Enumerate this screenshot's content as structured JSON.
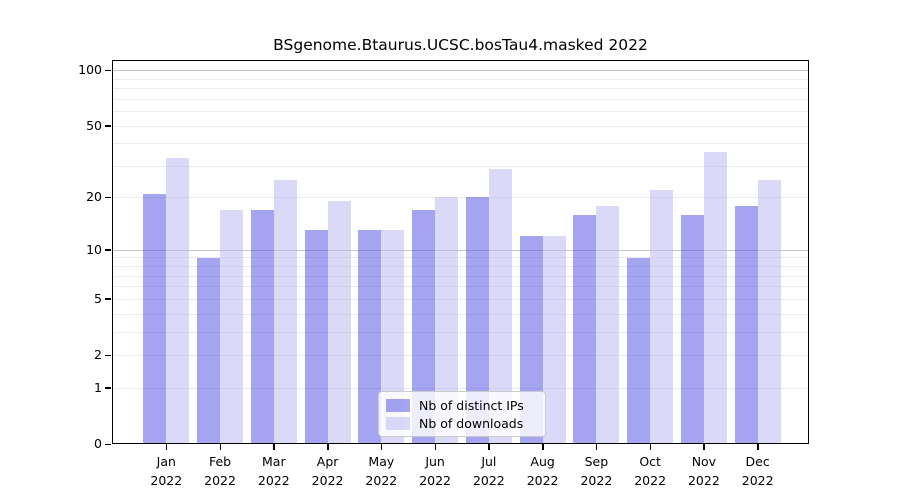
{
  "chart_data": {
    "type": "bar",
    "title": "BSgenome.Btaurus.UCSC.bosTau4.masked 2022",
    "categories": [
      "Jan",
      "Feb",
      "Mar",
      "Apr",
      "May",
      "Jun",
      "Jul",
      "Aug",
      "Sep",
      "Oct",
      "Nov",
      "Dec"
    ],
    "year_label": "2022",
    "series": [
      {
        "name": "Nb of distinct IPs",
        "color": "rgba(73,73,225,0.5)",
        "color_flat": "#a4a4f0",
        "values": [
          21,
          9,
          17,
          13,
          13,
          17,
          20,
          12,
          16,
          9,
          16,
          18
        ]
      },
      {
        "name": "Nb of downloads",
        "color": "rgba(181,181,241,0.5)",
        "color_flat": "#dadaf8",
        "values": [
          33,
          17,
          25,
          19,
          13,
          20,
          29,
          12,
          18,
          22,
          36,
          25
        ]
      }
    ],
    "yscale": "log1p",
    "ylim": [
      0,
      113
    ],
    "yticks": [
      0,
      1,
      2,
      5,
      10,
      20,
      50,
      100
    ],
    "grid_minor": [
      1,
      2,
      3,
      4,
      5,
      6,
      7,
      8,
      9,
      20,
      30,
      40,
      50,
      60,
      70,
      80,
      90
    ],
    "grid_major": [
      10,
      100
    ],
    "grid_color_minor": "#eaeaea",
    "grid_color_major": "#c6c6c6",
    "legend_position": "lower center-right",
    "xlabel": "",
    "ylabel": ""
  }
}
